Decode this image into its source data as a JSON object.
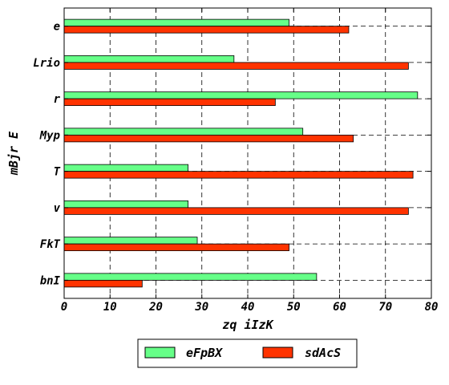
{
  "chart_data": {
    "type": "bar",
    "orientation": "horizontal",
    "categories": [
      "bnI",
      "FkT",
      "v",
      "T",
      "Myp",
      "r",
      "Lrio",
      "e"
    ],
    "series": [
      {
        "name": "eFpBX",
        "color": "#66ff88",
        "values": [
          55,
          29,
          27,
          27,
          52,
          77,
          37,
          49
        ]
      },
      {
        "name": "sdAcS",
        "color": "#ff3300",
        "values": [
          17,
          49,
          75,
          76,
          63,
          46,
          75,
          62
        ]
      }
    ],
    "xlabel": "zq iIzK",
    "ylabel": "mBjr E",
    "xlim": [
      0,
      80
    ],
    "xticks": [
      0,
      10,
      20,
      30,
      40,
      50,
      60,
      70,
      80
    ],
    "grid": true,
    "legend_position": "bottom-center"
  }
}
